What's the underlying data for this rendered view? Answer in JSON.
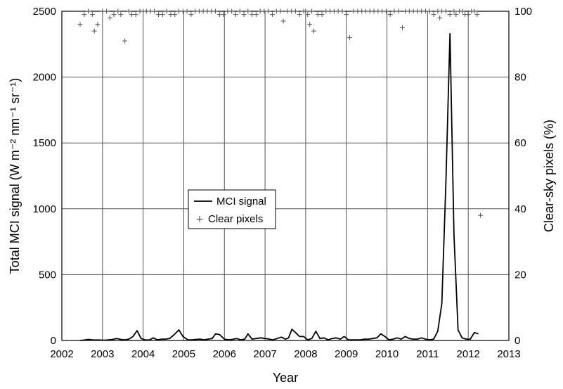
{
  "chart_data": {
    "type": "line",
    "xlabel": "Year",
    "ylabel_left": "Total MCI signal (W m⁻² nm⁻¹ sr⁻¹)",
    "ylabel_right": "Clear-sky pixels (%)",
    "xlim": [
      2002,
      2013
    ],
    "ylim_left": [
      0,
      2500
    ],
    "ylim_right": [
      0,
      100
    ],
    "x_ticks": [
      "2002",
      "2003",
      "2004",
      "2005",
      "2006",
      "2007",
      "2008",
      "2009",
      "2010",
      "2011",
      "2012",
      "2013"
    ],
    "y_left_ticks": [
      "0",
      "500",
      "1000",
      "1500",
      "2000",
      "2500"
    ],
    "y_right_ticks": [
      "0",
      "20",
      "40",
      "60",
      "80",
      "100"
    ],
    "grid": "vertical at years, horizontal at left-axis ticks",
    "legend_position": "center-left",
    "legend": {
      "mci_label": "MCI signal",
      "clear_label": "Clear pixels"
    },
    "series": [
      {
        "name": "MCI signal",
        "axis": "left",
        "style": "line",
        "color": "#000000",
        "x": [
          2002.45,
          2002.55,
          2002.65,
          2002.75,
          2002.85,
          2002.95,
          2003.05,
          2003.15,
          2003.25,
          2003.35,
          2003.45,
          2003.55,
          2003.65,
          2003.75,
          2003.85,
          2003.95,
          2004.05,
          2004.15,
          2004.25,
          2004.35,
          2004.45,
          2004.55,
          2004.65,
          2004.75,
          2004.88,
          2004.98,
          2005.1,
          2005.2,
          2005.3,
          2005.4,
          2005.5,
          2005.6,
          2005.7,
          2005.78,
          2005.88,
          2006.0,
          2006.1,
          2006.2,
          2006.3,
          2006.4,
          2006.5,
          2006.58,
          2006.68,
          2006.78,
          2006.9,
          2007.0,
          2007.1,
          2007.2,
          2007.3,
          2007.4,
          2007.5,
          2007.58,
          2007.66,
          2007.75,
          2007.85,
          2007.95,
          2008.05,
          2008.15,
          2008.25,
          2008.35,
          2008.45,
          2008.55,
          2008.65,
          2008.75,
          2008.85,
          2008.95,
          2009.05,
          2009.15,
          2009.25,
          2009.35,
          2009.45,
          2009.55,
          2009.65,
          2009.75,
          2009.85,
          2009.95,
          2010.05,
          2010.15,
          2010.25,
          2010.35,
          2010.45,
          2010.55,
          2010.65,
          2010.75,
          2010.85,
          2010.95,
          2011.05,
          2011.15,
          2011.25,
          2011.35,
          2011.45,
          2011.55,
          2011.65,
          2011.75,
          2011.85,
          2011.95,
          2012.05,
          2012.15,
          2012.25
        ],
        "y": [
          0,
          3,
          8,
          5,
          4,
          3,
          2,
          5,
          8,
          15,
          8,
          5,
          10,
          30,
          75,
          15,
          5,
          3,
          20,
          5,
          10,
          10,
          15,
          40,
          80,
          30,
          5,
          5,
          8,
          10,
          5,
          10,
          15,
          50,
          45,
          10,
          5,
          8,
          15,
          5,
          10,
          50,
          10,
          15,
          20,
          15,
          10,
          5,
          15,
          25,
          10,
          20,
          85,
          60,
          30,
          30,
          5,
          15,
          70,
          15,
          20,
          5,
          15,
          20,
          10,
          30,
          5,
          5,
          5,
          5,
          10,
          10,
          15,
          20,
          50,
          30,
          5,
          10,
          20,
          10,
          30,
          15,
          10,
          10,
          20,
          10,
          5,
          10,
          70,
          280,
          1200,
          2330,
          800,
          80,
          20,
          10,
          10,
          60,
          50
        ]
      },
      {
        "name": "Clear pixels",
        "axis": "right",
        "style": "plus-markers",
        "color": "#555555",
        "x": [
          2002.45,
          2002.55,
          2002.65,
          2002.75,
          2002.8,
          2002.88,
          2003.0,
          2003.1,
          2003.18,
          2003.28,
          2003.38,
          2003.45,
          2003.55,
          2003.65,
          2003.72,
          2003.82,
          2003.92,
          2004.0,
          2004.08,
          2004.18,
          2004.28,
          2004.38,
          2004.48,
          2004.58,
          2004.68,
          2004.78,
          2004.88,
          2004.98,
          2005.08,
          2005.18,
          2005.28,
          2005.38,
          2005.48,
          2005.58,
          2005.68,
          2005.78,
          2005.88,
          2005.98,
          2006.08,
          2006.18,
          2006.28,
          2006.38,
          2006.48,
          2006.58,
          2006.68,
          2006.78,
          2006.88,
          2006.98,
          2007.08,
          2007.18,
          2007.28,
          2007.38,
          2007.45,
          2007.55,
          2007.65,
          2007.75,
          2007.85,
          2007.95,
          2008.0,
          2008.05,
          2008.1,
          2008.15,
          2008.2,
          2008.3,
          2008.4,
          2008.5,
          2008.6,
          2008.7,
          2008.8,
          2008.9,
          2009.0,
          2009.08,
          2009.18,
          2009.28,
          2009.38,
          2009.48,
          2009.58,
          2009.68,
          2009.78,
          2009.88,
          2009.98,
          2010.08,
          2010.18,
          2010.28,
          2010.38,
          2010.45,
          2010.55,
          2010.65,
          2010.75,
          2010.85,
          2010.95,
          2011.05,
          2011.15,
          2011.25,
          2011.3,
          2011.35,
          2011.45,
          2011.55,
          2011.65,
          2011.7,
          2011.78,
          2011.85,
          2011.92,
          2012.0,
          2012.08,
          2012.15,
          2012.22,
          2012.3
        ],
        "y": [
          96,
          99,
          100,
          99,
          94,
          96,
          100,
          100,
          98,
          99,
          100,
          99,
          91,
          100,
          99,
          99,
          100,
          100,
          100,
          100,
          100,
          99,
          99,
          100,
          99,
          99,
          100,
          100,
          100,
          99,
          100,
          100,
          100,
          100,
          100,
          100,
          99,
          99,
          100,
          100,
          99,
          100,
          99,
          100,
          99,
          99,
          100,
          100,
          100,
          99,
          100,
          100,
          97,
          100,
          100,
          100,
          99,
          100,
          100,
          99,
          96,
          100,
          94,
          99,
          99,
          100,
          100,
          100,
          100,
          100,
          99,
          92,
          100,
          100,
          100,
          100,
          100,
          100,
          100,
          100,
          100,
          99,
          100,
          100,
          95,
          100,
          100,
          100,
          100,
          100,
          100,
          100,
          99,
          100,
          98,
          100,
          100,
          99,
          100,
          99,
          100,
          100,
          99,
          99,
          100,
          100,
          99,
          38
        ]
      }
    ]
  }
}
